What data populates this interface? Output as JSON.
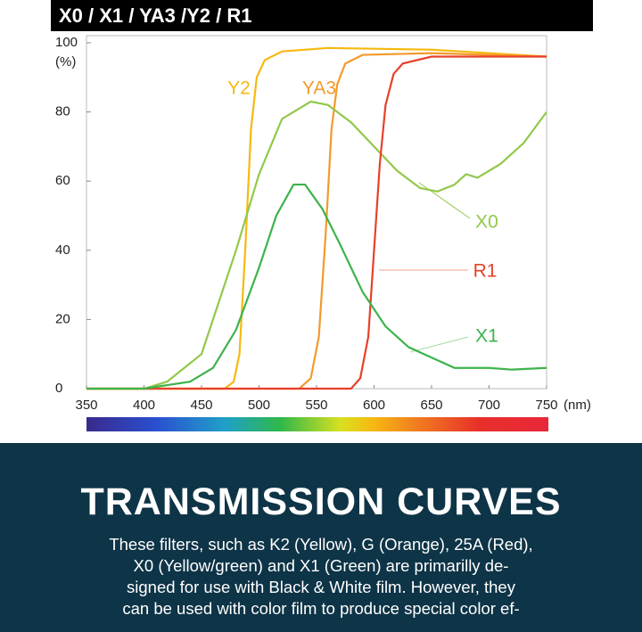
{
  "chart_data": {
    "type": "line",
    "title": "X0 / X1 / YA3 /Y2 / R1",
    "y_unit": "(%)",
    "x_unit": "(nm)",
    "xlim": [
      350,
      750
    ],
    "ylim": [
      0,
      100
    ],
    "xticks": [
      350,
      400,
      450,
      500,
      550,
      600,
      650,
      700,
      750
    ],
    "yticks": [
      0,
      20,
      40,
      60,
      80,
      100
    ],
    "grid": false,
    "series": [
      {
        "name": "Y2",
        "color": "#f6b912",
        "x": [
          350,
          470,
          478,
          483,
          488,
          493,
          498,
          505,
          520,
          560,
          650,
          750
        ],
        "values": [
          0,
          0,
          2,
          10,
          40,
          75,
          90,
          95,
          97.5,
          98.5,
          98,
          96
        ]
      },
      {
        "name": "YA3",
        "color": "#f39a2c",
        "x": [
          350,
          535,
          545,
          552,
          558,
          563,
          568,
          575,
          590,
          650,
          750
        ],
        "values": [
          0,
          0,
          3,
          15,
          45,
          75,
          88,
          94,
          96.5,
          97,
          96
        ]
      },
      {
        "name": "X0",
        "color": "#92c84a",
        "x": [
          350,
          400,
          420,
          450,
          480,
          500,
          520,
          545,
          560,
          580,
          600,
          620,
          640,
          655,
          670,
          680,
          690,
          710,
          730,
          750
        ],
        "values": [
          0,
          0,
          2,
          10,
          40,
          62,
          78,
          83,
          82,
          77,
          70,
          63,
          58,
          57,
          59,
          62,
          61,
          65,
          71,
          80
        ]
      },
      {
        "name": "R1",
        "color": "#e8402a",
        "x": [
          350,
          580,
          588,
          595,
          600,
          605,
          610,
          617,
          625,
          650,
          750
        ],
        "values": [
          0,
          0,
          3,
          15,
          40,
          65,
          82,
          91,
          94,
          96,
          96
        ]
      },
      {
        "name": "X1",
        "color": "#3db34b",
        "x": [
          350,
          400,
          440,
          460,
          480,
          500,
          515,
          530,
          540,
          555,
          570,
          590,
          610,
          630,
          650,
          670,
          700,
          720,
          750
        ],
        "values": [
          0,
          0,
          2,
          6,
          17,
          35,
          50,
          59,
          59,
          52,
          42,
          28,
          18,
          12,
          9,
          6,
          6,
          5.5,
          6
        ]
      }
    ]
  },
  "panel": {
    "heading": "TRANSMISSION CURVES",
    "lines": [
      "These filters, such as K2 (Yellow), G (Orange), 25A (Red),",
      "X0 (Yellow/green) and X1 (Green) are primarilly de-",
      "signed for use with Black & White film. However, they",
      "can be used with color film to produce special color ef-"
    ]
  }
}
